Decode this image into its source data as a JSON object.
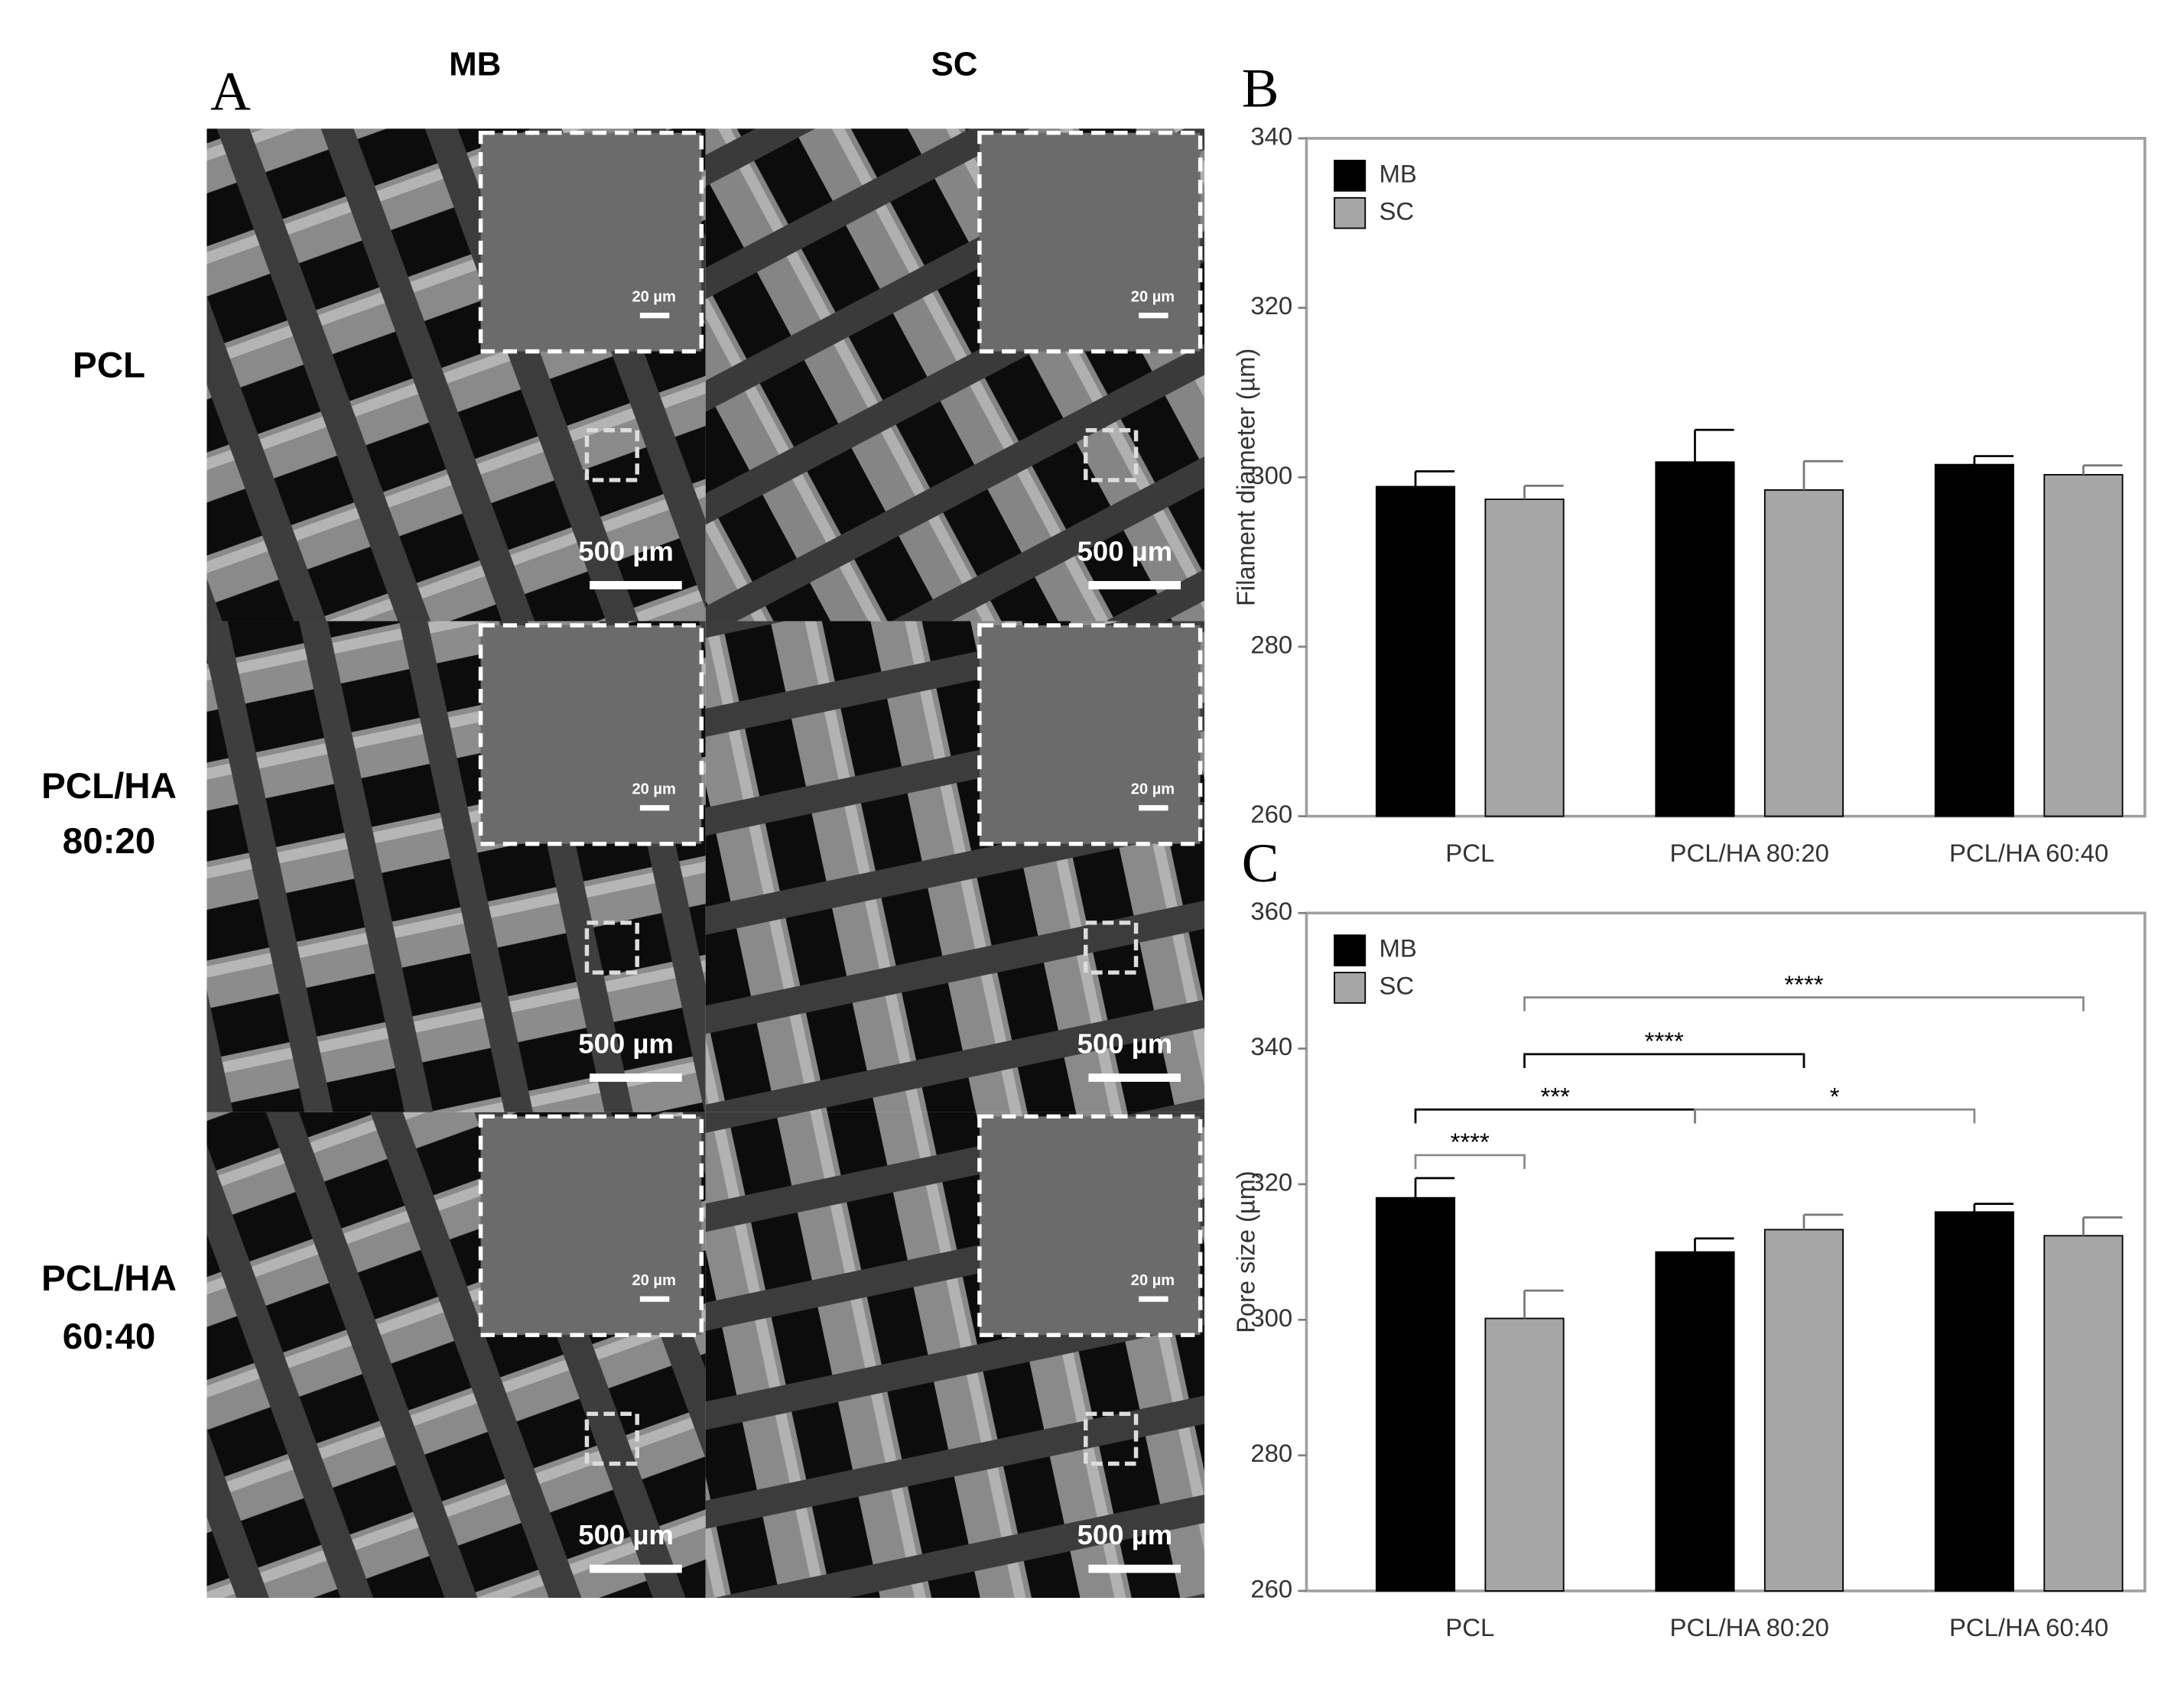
{
  "panel_a": {
    "label": "A",
    "columns": [
      "MB",
      "SC"
    ],
    "rows": [
      [
        "PCL"
      ],
      [
        "PCL/HA",
        "80:20"
      ],
      [
        "PCL/HA",
        "60:40"
      ]
    ],
    "images": [
      {
        "scale_bar": "500 µm",
        "inset_scale_bar": "20 µm"
      },
      {
        "scale_bar": "500 µm",
        "inset_scale_bar": "20 µm"
      },
      {
        "scale_bar": "500 µm",
        "inset_scale_bar": "20 µm"
      },
      {
        "scale_bar": "500 µm",
        "inset_scale_bar": "20 µm"
      },
      {
        "scale_bar": "500 µm",
        "inset_scale_bar": "20 µm"
      },
      {
        "scale_bar": "500 µm",
        "inset_scale_bar": "20 µm"
      }
    ]
  },
  "chart_data": [
    {
      "type": "bar",
      "panel": "B",
      "y_label": "Filament diameter (µm)",
      "categories": [
        "PCL",
        "PCL/HA 80:20",
        "PCL/HA 60:40"
      ],
      "series": [
        {
          "name": "MB",
          "color": "#000000",
          "values": [
            298.9,
            301.8,
            301.5
          ],
          "errors": [
            1.8,
            3.8,
            1.0
          ]
        },
        {
          "name": "SC",
          "color": "#a6a6a6",
          "values": [
            297.4,
            298.5,
            300.3
          ],
          "errors": [
            1.6,
            3.4,
            1.1
          ]
        }
      ],
      "ylim": [
        260,
        340
      ],
      "yticks": [
        260,
        280,
        300,
        320,
        340
      ],
      "legend": "upper left"
    },
    {
      "type": "bar",
      "panel": "C",
      "y_label": "Pore size (µm)",
      "categories": [
        "PCL",
        "PCL/HA 80:20",
        "PCL/HA 60:40"
      ],
      "series": [
        {
          "name": "MB",
          "color": "#000000",
          "values": [
            318.0,
            310.0,
            315.9
          ],
          "errors": [
            2.9,
            2.0,
            1.2
          ]
        },
        {
          "name": "SC",
          "color": "#a6a6a6",
          "values": [
            300.2,
            313.3,
            312.4
          ],
          "errors": [
            4.1,
            2.2,
            2.7
          ]
        }
      ],
      "ylim": [
        260,
        360
      ],
      "yticks": [
        260,
        280,
        300,
        320,
        340,
        360
      ],
      "legend": "upper left",
      "annotations": [
        "****",
        "****",
        "***",
        "*",
        "****"
      ]
    }
  ]
}
